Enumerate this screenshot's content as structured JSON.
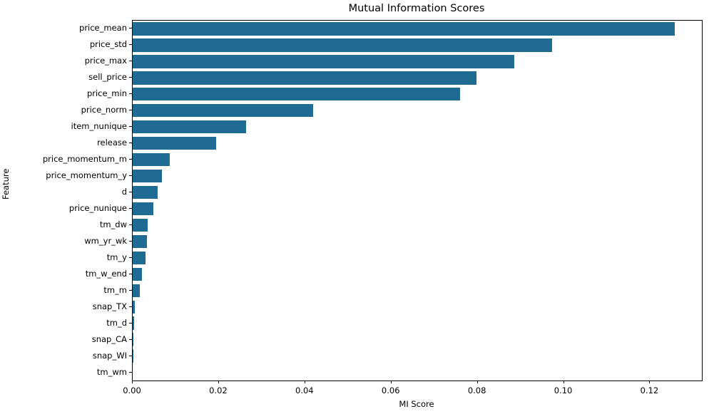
{
  "chart_data": {
    "type": "bar",
    "orientation": "horizontal",
    "title": "Mutual Information Scores",
    "xlabel": "MI Score",
    "ylabel": "Feature",
    "categories": [
      "price_mean",
      "price_std",
      "price_max",
      "sell_price",
      "price_min",
      "price_norm",
      "item_nunique",
      "release",
      "price_momentum_m",
      "price_momentum_y",
      "d",
      "price_nunique",
      "tm_dw",
      "wm_yr_wk",
      "tm_y",
      "tm_w_end",
      "tm_m",
      "snap_TX",
      "tm_d",
      "snap_CA",
      "snap_WI",
      "tm_wm"
    ],
    "values": [
      0.1257,
      0.0973,
      0.0885,
      0.0797,
      0.076,
      0.0419,
      0.0263,
      0.0193,
      0.0086,
      0.0068,
      0.0058,
      0.0048,
      0.0034,
      0.0033,
      0.003,
      0.0022,
      0.0016,
      0.0005,
      0.0004,
      0.0001,
      5e-05,
      0.0
    ],
    "xlim": [
      0,
      0.132
    ],
    "xticks": [
      0.0,
      0.02,
      0.04,
      0.06,
      0.08,
      0.1,
      0.12
    ],
    "xtick_labels": [
      "0.00",
      "0.02",
      "0.04",
      "0.06",
      "0.08",
      "0.10",
      "0.12"
    ],
    "bar_color": "#1f6b94",
    "grid": false,
    "legend": null
  }
}
